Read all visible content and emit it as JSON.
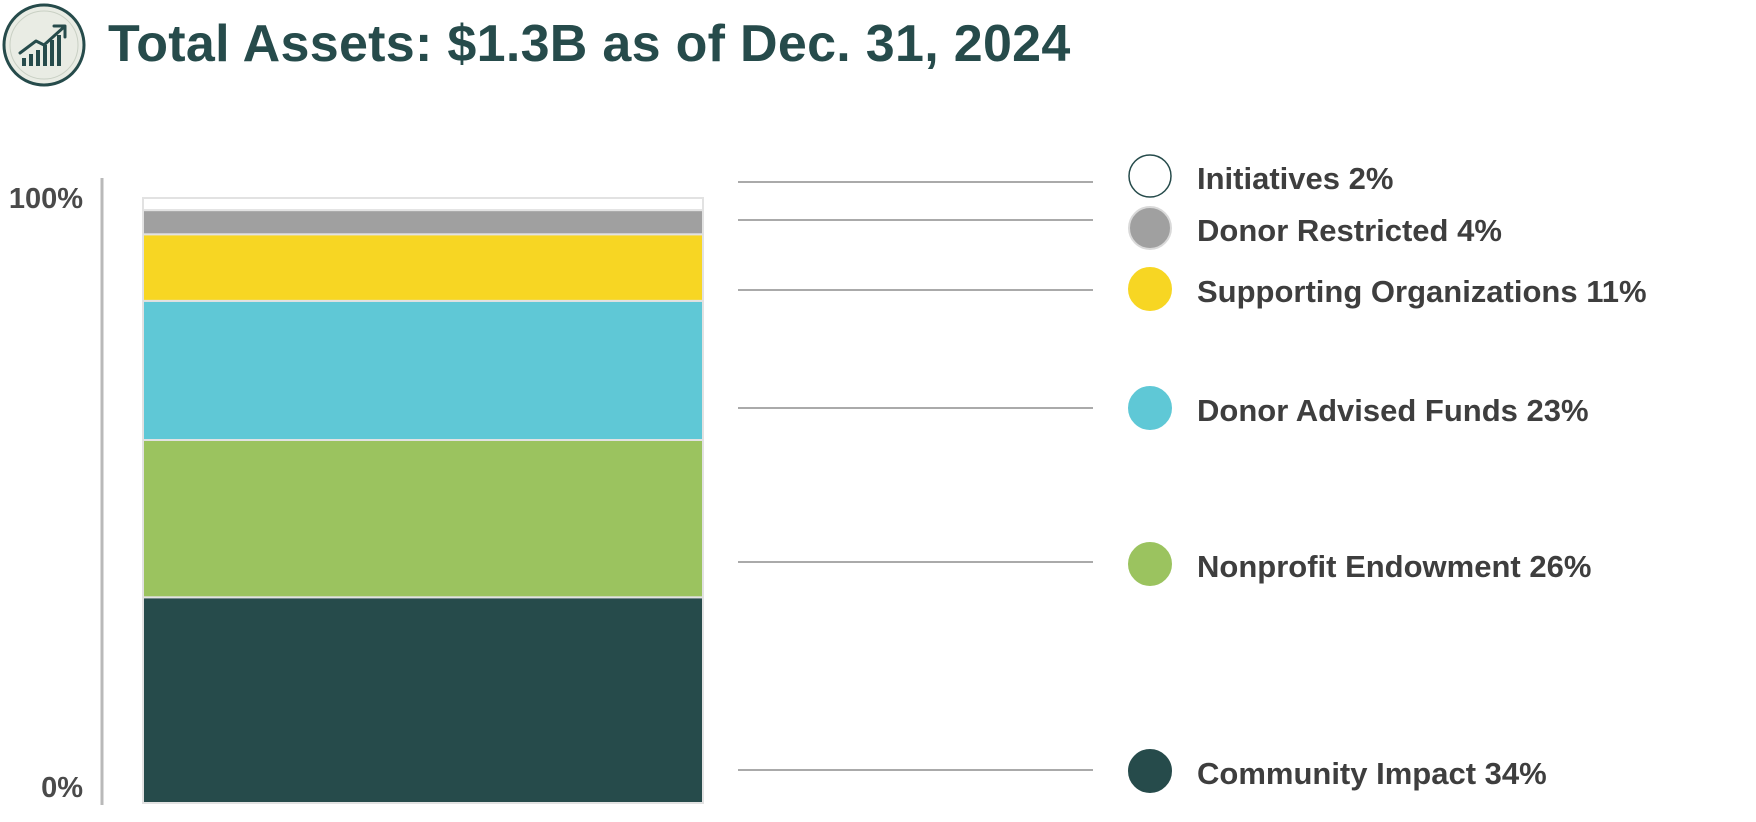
{
  "header": {
    "icon": "growth-chart-icon",
    "title": "Total Assets: $1.3B as of Dec. 31, 2024"
  },
  "chart_data": {
    "type": "bar",
    "stacked": true,
    "title": "Total Assets: $1.3B as of Dec. 31, 2024",
    "ylim": [
      0,
      100
    ],
    "yticks": [
      {
        "value": 0,
        "label": "0%"
      },
      {
        "value": 100,
        "label": "100%"
      }
    ],
    "legend_position": "right",
    "series": [
      {
        "name": "Community Impact",
        "value": 34,
        "label": "Community Impact 34%",
        "color": "#264b4b"
      },
      {
        "name": "Nonprofit Endowment",
        "value": 26,
        "label": "Nonprofit Endowment 26%",
        "color": "#9bc35f"
      },
      {
        "name": "Donor Advised Funds",
        "value": 23,
        "label": "Donor Advised Funds 23%",
        "color": "#5fc8d6"
      },
      {
        "name": "Supporting Organizations",
        "value": 11,
        "label": "Supporting Organizations 11%",
        "color": "#f7d623"
      },
      {
        "name": "Donor Restricted",
        "value": 4,
        "label": "Donor Restricted 4%",
        "color": "#a0a0a0"
      },
      {
        "name": "Initiatives",
        "value": 2,
        "label": "Initiatives 2%",
        "color": "#ffffff"
      }
    ]
  }
}
